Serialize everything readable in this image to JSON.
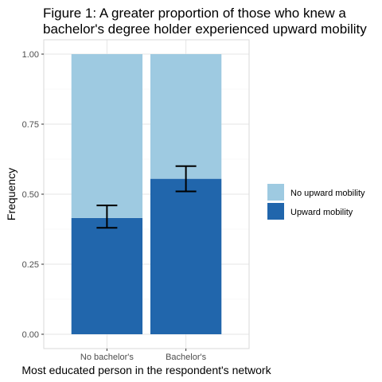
{
  "chart_data": {
    "type": "bar",
    "stacked": true,
    "title": "Figure 1: A greater proportion of those who knew a bachelor's degree holder experienced upward mobility",
    "title_lines": [
      "Figure 1: A greater proportion of those who knew a",
      "bachelor's degree holder experienced upward mobility"
    ],
    "xlabel": "Most educated person in the respondent's network",
    "ylabel": "Frequency",
    "categories": [
      "No bachelor's",
      "Bachelor's"
    ],
    "series": [
      {
        "name": "Upward mobility",
        "values": [
          0.415,
          0.555
        ],
        "color": "#2166ac"
      },
      {
        "name": "No upward mobility",
        "values": [
          0.585,
          0.445
        ],
        "color": "#9ecae1"
      }
    ],
    "error_bars": [
      {
        "category": "No bachelor's",
        "center": 0.42,
        "lower": 0.38,
        "upper": 0.46
      },
      {
        "category": "Bachelor's",
        "center": 0.555,
        "lower": 0.51,
        "upper": 0.6
      }
    ],
    "ylim": [
      0,
      1
    ],
    "yticks": [
      0,
      0.25,
      0.5,
      0.75,
      1
    ],
    "ytick_labels": [
      "0.00",
      "0.25",
      "0.50",
      "0.75",
      "1.00"
    ],
    "grid": true,
    "legend_position": "right",
    "legend_entries": [
      {
        "label": "No upward mobility",
        "color": "#9ecae1"
      },
      {
        "label": "Upward mobility",
        "color": "#2166ac"
      }
    ]
  }
}
